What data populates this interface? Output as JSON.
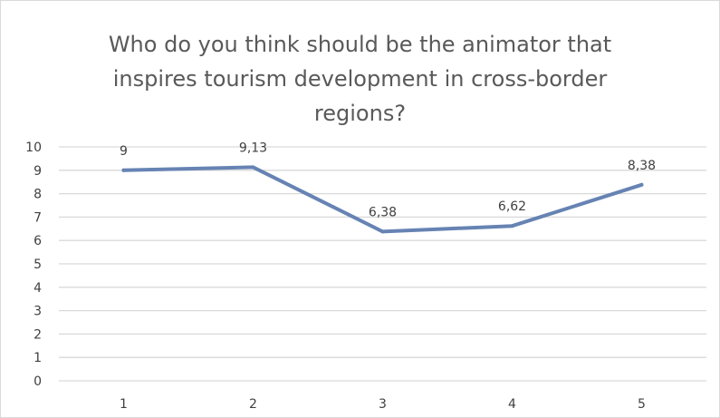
{
  "chart_data": {
    "type": "line",
    "title_lines": [
      "Who do you think should be the animator that",
      "inspires tourism development in cross-border",
      "regions?"
    ],
    "categories": [
      "1",
      "2",
      "3",
      "4",
      "5"
    ],
    "series": [
      {
        "values": [
          9,
          9.13,
          6.38,
          6.62,
          8.38
        ],
        "data_labels": [
          "9",
          "9,13",
          "6,38",
          "6,62",
          "8,38"
        ],
        "color": "#6683b3"
      }
    ],
    "y_ticks": [
      "0",
      "1",
      "2",
      "3",
      "4",
      "5",
      "6",
      "7",
      "8",
      "9",
      "10"
    ],
    "ylim": [
      0,
      10
    ],
    "grid": true,
    "legend": "none",
    "gridline_color": "#d9d9d9",
    "text_color": "#595959"
  }
}
